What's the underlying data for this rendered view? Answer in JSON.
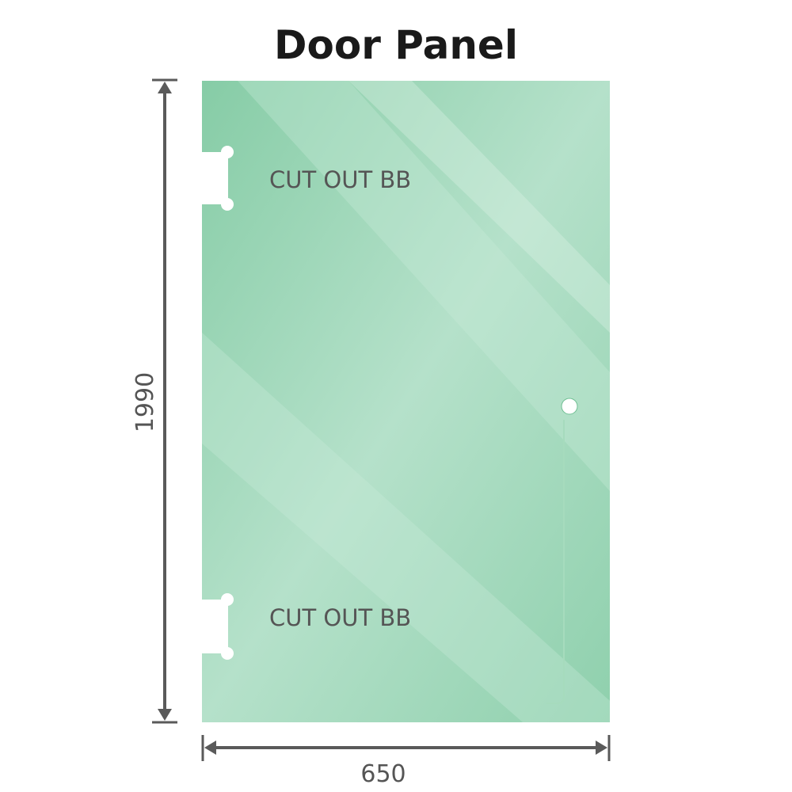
{
  "title": "Door Panel",
  "labels": {
    "cutout_top": "CUT OUT BB",
    "cutout_bottom": "CUT OUT BB"
  },
  "dimensions": {
    "height": "1990",
    "width": "650"
  },
  "colors": {
    "glass": "#8fd0ad",
    "glass_light": "#b9e3cd",
    "dimension_line": "#555555"
  }
}
